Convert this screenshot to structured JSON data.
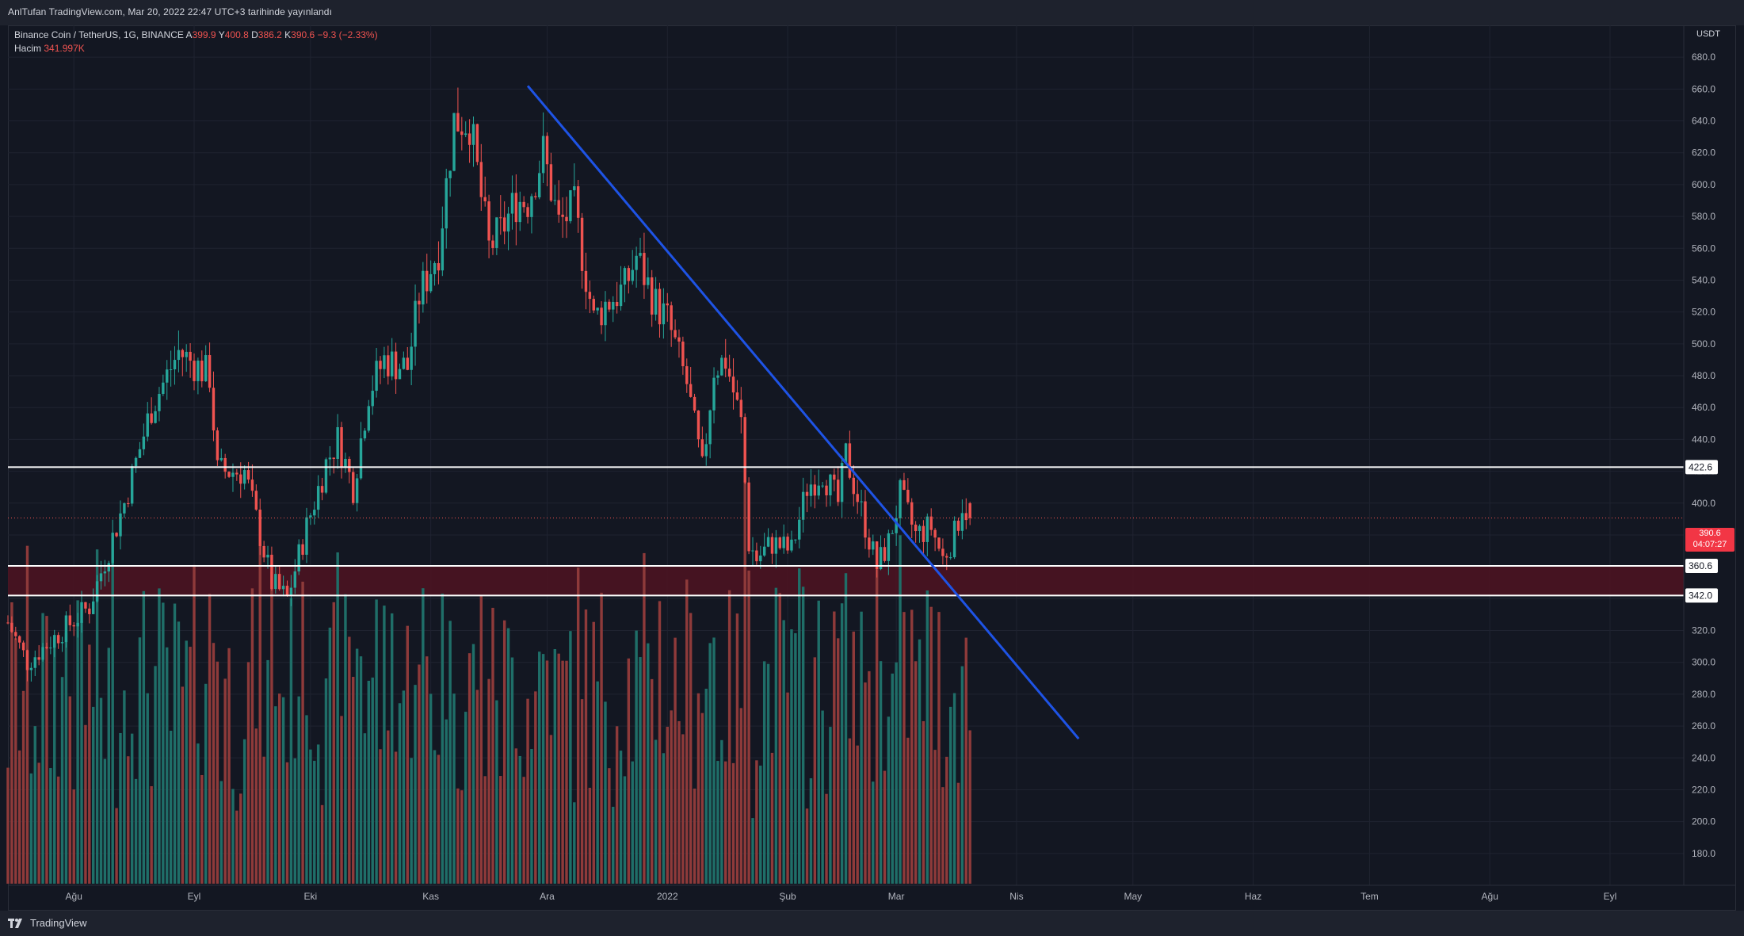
{
  "header": {
    "published": "AnlTufan TradingView.com, Mar 20, 2022 22:47 UTC+3 tarihinde yayınlandı"
  },
  "legend": {
    "symbol": "Binance Coin / TetherUS, 1G, BINANCE",
    "open_label": "A",
    "open": "399.9",
    "high_label": "Y",
    "high": "400.8",
    "low_label": "D",
    "low": "386.2",
    "close_label": "K",
    "close": "390.6",
    "change": "−9.3 (−2.33%)",
    "volume_label": "Hacim",
    "volume": "341.997K"
  },
  "price_axis": {
    "currency": "USDT",
    "current_price": "390.6",
    "countdown": "04:07:27"
  },
  "footer": {
    "brand": "TradingView"
  },
  "colors": {
    "up": "#26a69a",
    "down": "#ef5350",
    "up_volume": "#1f6e68",
    "down_volume": "#8e3a3a",
    "trendline": "#1e53e5",
    "zone": "#4a1422",
    "background": "#131722"
  },
  "chart_data": {
    "type": "candlestick",
    "timeframe": "1G",
    "ylim": [
      160,
      700
    ],
    "y_ticks": [
      180,
      200,
      220,
      240,
      260,
      280,
      300,
      320,
      340,
      360,
      380,
      400,
      420,
      440,
      460,
      480,
      500,
      520,
      540,
      560,
      580,
      600,
      620,
      640,
      660,
      680
    ],
    "x_ticks": [
      {
        "label": "Ağu",
        "date": "2021-08-01"
      },
      {
        "label": "Eyl",
        "date": "2021-09-01"
      },
      {
        "label": "Eki",
        "date": "2021-10-01"
      },
      {
        "label": "Kas",
        "date": "2021-11-01"
      },
      {
        "label": "Ara",
        "date": "2021-12-01"
      },
      {
        "label": "2022",
        "date": "2022-01-01"
      },
      {
        "label": "Şub",
        "date": "2022-02-01"
      },
      {
        "label": "Mar",
        "date": "2022-03-01"
      },
      {
        "label": "Nis",
        "date": "2022-04-01"
      },
      {
        "label": "May",
        "date": "2022-05-01"
      },
      {
        "label": "Haz",
        "date": "2022-06-01"
      },
      {
        "label": "Tem",
        "date": "2022-07-01"
      },
      {
        "label": "Ağu",
        "date": "2022-08-01"
      },
      {
        "label": "Eyl",
        "date": "2022-09-01"
      }
    ],
    "x_range": [
      "2021-07-15",
      "2022-09-20"
    ],
    "keypoints": [
      {
        "date": "2021-07-15",
        "close": 325
      },
      {
        "date": "2021-07-20",
        "close": 300
      },
      {
        "date": "2021-07-29",
        "close": 320
      },
      {
        "date": "2021-08-05",
        "close": 335
      },
      {
        "date": "2021-08-14",
        "close": 400
      },
      {
        "date": "2021-08-21",
        "close": 460
      },
      {
        "date": "2021-08-28",
        "close": 495
      },
      {
        "date": "2021-09-05",
        "close": 480
      },
      {
        "date": "2021-09-07",
        "close": 420
      },
      {
        "date": "2021-09-14",
        "close": 420
      },
      {
        "date": "2021-09-21",
        "close": 350
      },
      {
        "date": "2021-09-25",
        "close": 340
      },
      {
        "date": "2021-09-30",
        "close": 385
      },
      {
        "date": "2021-10-05",
        "close": 425
      },
      {
        "date": "2021-10-08",
        "close": 440
      },
      {
        "date": "2021-10-12",
        "close": 410
      },
      {
        "date": "2021-10-16",
        "close": 470
      },
      {
        "date": "2021-10-20",
        "close": 490
      },
      {
        "date": "2021-10-26",
        "close": 485
      },
      {
        "date": "2021-10-29",
        "close": 530
      },
      {
        "date": "2021-11-03",
        "close": 560
      },
      {
        "date": "2021-11-07",
        "close": 640
      },
      {
        "date": "2021-11-11",
        "close": 640
      },
      {
        "date": "2021-11-16",
        "close": 560
      },
      {
        "date": "2021-11-19",
        "close": 570
      },
      {
        "date": "2021-11-23",
        "close": 590
      },
      {
        "date": "2021-11-26",
        "close": 590
      },
      {
        "date": "2021-11-30",
        "close": 620
      },
      {
        "date": "2021-12-04",
        "close": 575
      },
      {
        "date": "2021-12-08",
        "close": 585
      },
      {
        "date": "2021-12-13",
        "close": 515
      },
      {
        "date": "2021-12-16",
        "close": 525
      },
      {
        "date": "2021-12-21",
        "close": 535
      },
      {
        "date": "2021-12-24",
        "close": 555
      },
      {
        "date": "2021-12-29",
        "close": 525
      },
      {
        "date": "2022-01-01",
        "close": 515
      },
      {
        "date": "2022-01-06",
        "close": 475
      },
      {
        "date": "2022-01-10",
        "close": 420
      },
      {
        "date": "2022-01-13",
        "close": 485
      },
      {
        "date": "2022-01-16",
        "close": 490
      },
      {
        "date": "2022-01-20",
        "close": 450
      },
      {
        "date": "2022-01-22",
        "close": 375
      },
      {
        "date": "2022-01-24",
        "close": 365
      },
      {
        "date": "2022-01-28",
        "close": 375
      },
      {
        "date": "2022-02-02",
        "close": 370
      },
      {
        "date": "2022-02-06",
        "close": 410
      },
      {
        "date": "2022-02-10",
        "close": 420
      },
      {
        "date": "2022-02-14",
        "close": 400
      },
      {
        "date": "2022-02-16",
        "close": 430
      },
      {
        "date": "2022-02-20",
        "close": 395
      },
      {
        "date": "2022-02-24",
        "close": 360
      },
      {
        "date": "2022-02-27",
        "close": 375
      },
      {
        "date": "2022-03-02",
        "close": 405
      },
      {
        "date": "2022-03-06",
        "close": 380
      },
      {
        "date": "2022-03-10",
        "close": 385
      },
      {
        "date": "2022-03-13",
        "close": 365
      },
      {
        "date": "2022-03-16",
        "close": 380
      },
      {
        "date": "2022-03-18",
        "close": 400
      },
      {
        "date": "2022-03-20",
        "close": 390.6
      }
    ],
    "volume_scale_max": 800000,
    "horizontal_lines": [
      {
        "price": 422.6,
        "label": "422.6"
      },
      {
        "price": 360.6,
        "label": "360.6"
      },
      {
        "price": 342.0,
        "label": "342.0"
      }
    ],
    "zone": {
      "from": 342.0,
      "to": 360.6
    },
    "trendline": {
      "start": {
        "date": "2021-11-26",
        "price": 662
      },
      "end": {
        "date": "2022-04-17",
        "price": 252
      }
    },
    "current": {
      "price": 390.6
    }
  }
}
